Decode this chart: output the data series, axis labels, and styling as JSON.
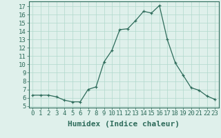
{
  "x_values": [
    0,
    1,
    2,
    3,
    4,
    5,
    6,
    7,
    8,
    9,
    10,
    11,
    12,
    13,
    14,
    15,
    16,
    17,
    18,
    19,
    20,
    21,
    22,
    23
  ],
  "y_values": [
    6.3,
    6.3,
    6.3,
    6.1,
    5.7,
    5.5,
    5.5,
    7.0,
    7.3,
    10.3,
    11.7,
    14.2,
    14.3,
    15.3,
    16.4,
    16.2,
    17.1,
    13.0,
    10.2,
    8.7,
    7.2,
    6.9,
    6.2,
    5.8
  ],
  "xlabel": "Humidex (Indice chaleur)",
  "xlim": [
    -0.5,
    23.5
  ],
  "ylim": [
    4.8,
    17.6
  ],
  "yticks": [
    5,
    6,
    7,
    8,
    9,
    10,
    11,
    12,
    13,
    14,
    15,
    16,
    17
  ],
  "xticks": [
    0,
    1,
    2,
    3,
    4,
    5,
    6,
    7,
    8,
    9,
    10,
    11,
    12,
    13,
    14,
    15,
    16,
    17,
    18,
    19,
    20,
    21,
    22,
    23
  ],
  "line_color": "#2d6b5a",
  "bg_color": "#dff0eb",
  "grid_color": "#b0d8cc",
  "axis_color": "#2d6b5a",
  "xlabel_fontsize": 8,
  "tick_fontsize": 6.5,
  "linewidth": 0.9,
  "markersize": 3.5
}
